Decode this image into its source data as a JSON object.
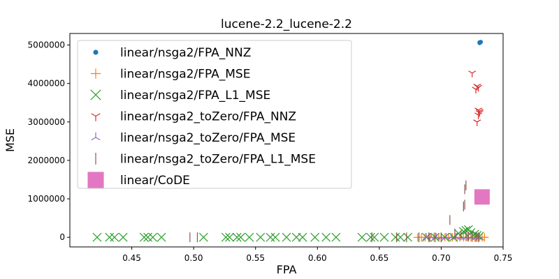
{
  "chart_data": {
    "type": "scatter",
    "title": "lucene-2.2_lucene-2.2",
    "xlabel": "FPA",
    "ylabel": "MSE",
    "xlim": [
      0.4,
      0.75
    ],
    "ylim": [
      -250000,
      5300000
    ],
    "xticks": [
      0.45,
      0.5,
      0.55,
      0.6,
      0.65,
      0.7,
      0.75
    ],
    "xtick_labels": [
      "0.45",
      "0.50",
      "0.55",
      "0.60",
      "0.65",
      "0.70",
      "0.75"
    ],
    "yticks": [
      0,
      1000000,
      2000000,
      3000000,
      4000000,
      5000000
    ],
    "ytick_labels": [
      "0",
      "1000000",
      "2000000",
      "3000000",
      "4000000",
      "5000000"
    ],
    "grid": false,
    "legend_position": "top-left",
    "series": [
      {
        "name": "linear/nsga2/FPA_NNZ",
        "marker": "dot",
        "color": "#1f77b4",
        "x": [
          0.731,
          0.731,
          0.732,
          0.731
        ],
        "y": [
          5050000,
          5070000,
          5080000,
          5060000
        ]
      },
      {
        "name": "linear/nsga2/FPA_MSE",
        "marker": "plus",
        "color": "#ff7f0e",
        "x": [
          0.681,
          0.684,
          0.687,
          0.691,
          0.694,
          0.698,
          0.7,
          0.703,
          0.706,
          0.709,
          0.712,
          0.715,
          0.718,
          0.721,
          0.724,
          0.727,
          0.729,
          0.731,
          0.733,
          0.735
        ],
        "y": [
          0,
          0,
          0,
          0,
          0,
          0,
          0,
          0,
          0,
          0,
          0,
          0,
          0,
          0,
          0,
          0,
          0,
          0,
          0,
          0
        ]
      },
      {
        "name": "linear/nsga2/FPA_L1_MSE",
        "marker": "x",
        "color": "#2ca02c",
        "x": [
          0.422,
          0.432,
          0.436,
          0.443,
          0.46,
          0.463,
          0.467,
          0.474,
          0.508,
          0.526,
          0.529,
          0.535,
          0.538,
          0.545,
          0.554,
          0.562,
          0.566,
          0.575,
          0.583,
          0.588,
          0.598,
          0.607,
          0.615,
          0.636,
          0.643,
          0.646,
          0.654,
          0.663,
          0.667,
          0.673,
          0.688,
          0.695,
          0.703,
          0.71,
          0.714,
          0.718,
          0.72,
          0.722,
          0.724,
          0.727,
          0.729,
          0.731
        ],
        "y": [
          0,
          0,
          0,
          0,
          0,
          0,
          0,
          0,
          0,
          0,
          0,
          0,
          0,
          0,
          0,
          0,
          0,
          0,
          0,
          0,
          0,
          0,
          0,
          0,
          0,
          0,
          0,
          0,
          0,
          0,
          0,
          0,
          0,
          0,
          100000,
          150000,
          180000,
          200000,
          120000,
          80000,
          50000,
          30000
        ]
      },
      {
        "name": "linear/nsga2_toZero/FPA_NNZ",
        "marker": "tri_down",
        "color": "#d62728",
        "x": [
          0.725,
          0.728,
          0.729,
          0.73,
          0.73,
          0.731,
          0.73,
          0.731,
          0.729
        ],
        "y": [
          4270000,
          3850000,
          3930000,
          3900000,
          3310000,
          3240000,
          3180000,
          3280000,
          3000000
        ]
      },
      {
        "name": "linear/nsga2_toZero/FPA_MSE",
        "marker": "tri_up",
        "color": "#9467bd",
        "x": [
          0.688,
          0.692,
          0.696,
          0.7,
          0.704,
          0.708,
          0.712,
          0.716,
          0.72,
          0.724,
          0.728,
          0.731
        ],
        "y": [
          0,
          0,
          0,
          0,
          0,
          0,
          0,
          0,
          0,
          0,
          0,
          0
        ]
      },
      {
        "name": "linear/nsga2_toZero/FPA_L1_MSE",
        "marker": "vline",
        "color": "#8c564b",
        "x": [
          0.497,
          0.503,
          0.644,
          0.664,
          0.672,
          0.682,
          0.69,
          0.695,
          0.7,
          0.707,
          0.711,
          0.716,
          0.718,
          0.719,
          0.719,
          0.72,
          0.72,
          0.722,
          0.725,
          0.728,
          0.73
        ],
        "y": [
          0,
          0,
          0,
          0,
          0,
          0,
          0,
          0,
          0,
          450000,
          100000,
          50000,
          800000,
          850000,
          1250000,
          1350000,
          30000,
          20000,
          10000,
          5000,
          0
        ]
      },
      {
        "name": "linear/CoDE",
        "marker": "square",
        "color": "#e377c2",
        "x": [
          0.733
        ],
        "y": [
          1050000
        ]
      }
    ]
  }
}
